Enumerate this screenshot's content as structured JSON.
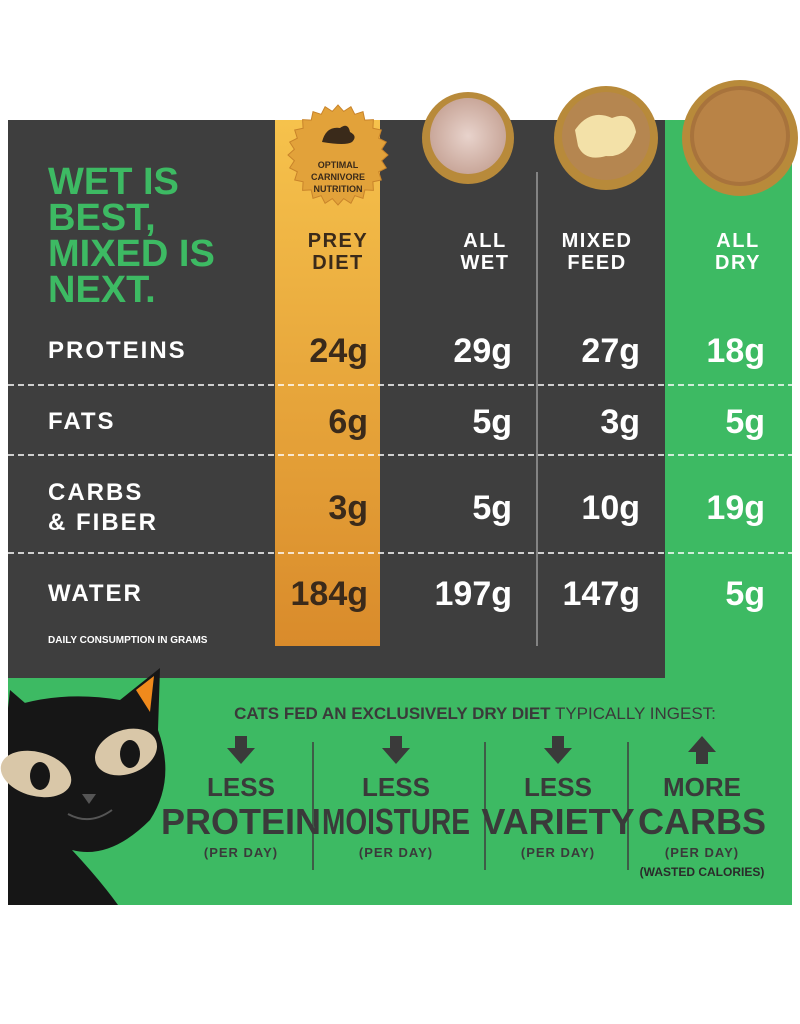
{
  "title": {
    "lines": [
      "WET IS",
      "BEST,",
      "MIXED IS",
      "NEXT."
    ]
  },
  "badge": {
    "lines": [
      "OPTIMAL",
      "CARNIVORE",
      "NUTRITION"
    ]
  },
  "table": {
    "columns": [
      {
        "lines": [
          "PREY",
          "DIET"
        ]
      },
      {
        "lines": [
          "ALL",
          "WET"
        ]
      },
      {
        "lines": [
          "MIXED",
          "FEED"
        ]
      },
      {
        "lines": [
          "ALL",
          "DRY"
        ]
      }
    ],
    "rows": [
      {
        "label": [
          "PROTEINS"
        ],
        "values": [
          "24g",
          "29g",
          "27g",
          "18g"
        ]
      },
      {
        "label": [
          "FATS"
        ],
        "values": [
          "6g",
          "5g",
          "3g",
          "5g"
        ]
      },
      {
        "label": [
          "CARBS",
          "& FIBER"
        ],
        "values": [
          "3g",
          "5g",
          "10g",
          "19g"
        ]
      },
      {
        "label": [
          "WATER"
        ],
        "values": [
          "184g",
          "197g",
          "147g",
          "5g"
        ]
      }
    ],
    "note": "DAILY CONSUMPTION IN GRAMS"
  },
  "summary": {
    "heading": {
      "bold": "CATS FED AN EXCLUSIVELY DRY DIET",
      "regular": " TYPICALLY INGEST:"
    },
    "items": [
      {
        "small": "LESS",
        "big": "PROTEIN",
        "unit": "(PER DAY)"
      },
      {
        "small": "LESS",
        "big": "MOISTURE",
        "unit": "(PER DAY)"
      },
      {
        "small": "LESS",
        "big": "VARIETY",
        "unit": "(PER DAY)"
      },
      {
        "small": "MORE",
        "big": "CARBS",
        "unit": "(PER DAY)",
        "note": "(WASTED CALORIES)"
      }
    ]
  }
}
